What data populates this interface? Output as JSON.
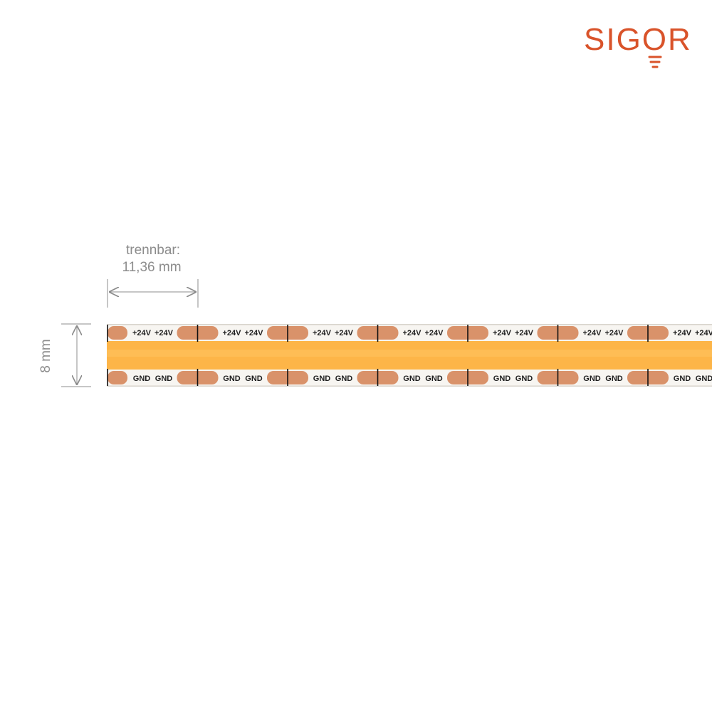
{
  "brand": {
    "name": "SIGOR",
    "color": "#d9532a"
  },
  "annotations": {
    "cut_label_line1": "trennbar:",
    "cut_label_line2": "11,36 mm",
    "width_label": "8 mm",
    "dimension_color": "#8c8c8c"
  },
  "strip": {
    "top_pad_label": "+24V",
    "bottom_pad_label": "GND",
    "led_band_color": "#fdb548",
    "copper_pad_color": "#d9926a",
    "pcb_color": "#f7f5f1",
    "segment_count": 7
  }
}
